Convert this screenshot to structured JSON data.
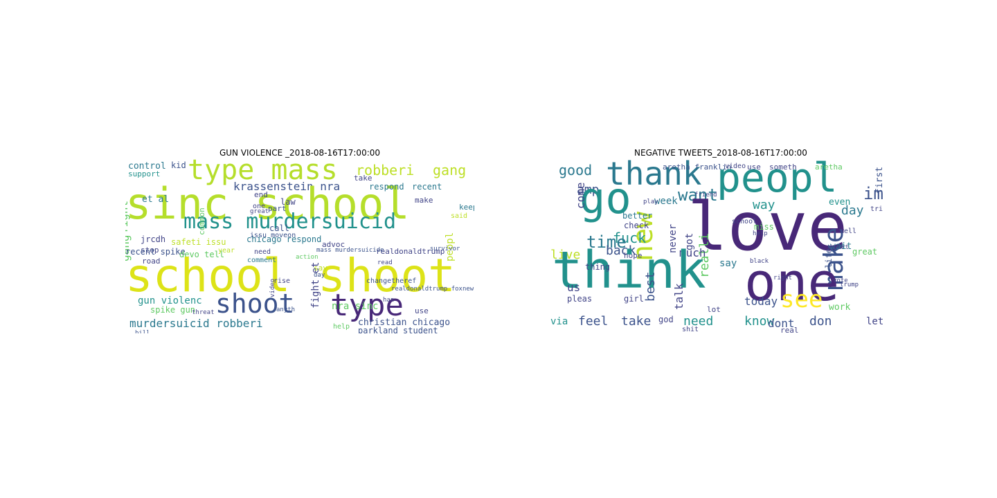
{
  "panels": [
    {
      "title": "GUN VIOLENCE _2018-08-16T17:00:00",
      "words": [
        {
          "t": "control",
          "c": "#2a788e"
        },
        {
          "t": "kid",
          "c": "#3b528b"
        },
        {
          "t": "support",
          "c": "#21918c"
        },
        {
          "t": "type mass",
          "c": "#b5de2b"
        },
        {
          "t": "robberi",
          "c": "#bddf26"
        },
        {
          "t": "gang",
          "c": "#bddf26"
        },
        {
          "t": "fight",
          "c": "#5ec962"
        },
        {
          "t": "krassenstein nra",
          "c": "#3b528b"
        },
        {
          "t": "sinc school",
          "c": "#b5de2b"
        },
        {
          "t": "et al",
          "c": "#2a788e"
        },
        {
          "t": "respond",
          "c": "#2a788e"
        },
        {
          "t": "recent",
          "c": "#2a788e"
        },
        {
          "t": "take",
          "c": "#414487"
        },
        {
          "t": "law",
          "c": "#414487"
        },
        {
          "t": "part",
          "c": "#3b528b"
        },
        {
          "t": "end",
          "c": "#414487"
        },
        {
          "t": "keep",
          "c": "#2a788e"
        },
        {
          "t": "make",
          "c": "#414487"
        },
        {
          "t": "said",
          "c": "#bddf26"
        },
        {
          "t": "mass murdersuicid",
          "c": "#21918c"
        },
        {
          "t": "gang",
          "c": "#5ec962"
        },
        {
          "t": "peopl",
          "c": "#bddf26"
        },
        {
          "t": "jrcdh",
          "c": "#414487"
        },
        {
          "t": "stop",
          "c": "#414487"
        },
        {
          "t": "road",
          "c": "#414487"
        },
        {
          "t": "call",
          "c": "#3b528b"
        },
        {
          "t": "chicago respond",
          "c": "#2a788e"
        },
        {
          "t": "safeti issu",
          "c": "#bddf26"
        },
        {
          "t": "recent spike",
          "c": "#3b528b"
        },
        {
          "t": "devo tell",
          "c": "#5ec962"
        },
        {
          "t": "advoc",
          "c": "#414487"
        },
        {
          "t": "realdonaldtrump",
          "c": "#414487"
        },
        {
          "t": "school shoot",
          "c": "#dde318"
        },
        {
          "t": "fight et",
          "c": "#414487"
        },
        {
          "t": "gun violenc",
          "c": "#21918c"
        },
        {
          "t": "shoot",
          "c": "#3b528b"
        },
        {
          "t": "type",
          "c": "#482878"
        },
        {
          "t": "nra sinc",
          "c": "#5ec962"
        },
        {
          "t": "spike gun",
          "c": "#5ec962"
        },
        {
          "t": "murdersuicid robberi",
          "c": "#2a788e"
        },
        {
          "t": "christian chicago",
          "c": "#3b528b"
        },
        {
          "t": "parkland student",
          "c": "#3b528b"
        },
        {
          "t": "use",
          "c": "#414487"
        },
        {
          "t": "help",
          "c": "#5ec962"
        },
        {
          "t": "say",
          "c": "#bddf26"
        },
        {
          "t": "year",
          "c": "#bddf26"
        },
        {
          "t": "need",
          "c": "#414487"
        },
        {
          "t": "comment",
          "c": "#2a788e"
        },
        {
          "t": "issu moveon",
          "c": "#3b528b"
        },
        {
          "t": "mass murdersuicide",
          "c": "#3b528b"
        },
        {
          "t": "survivor",
          "c": "#3b528b"
        },
        {
          "t": "read",
          "c": "#414487"
        },
        {
          "t": "changetheref",
          "c": "#3b528b"
        },
        {
          "t": "realdonaldtrump foxnew",
          "c": "#3b528b"
        },
        {
          "t": "threat",
          "c": "#414487"
        },
        {
          "t": "action",
          "c": "#5ec962"
        },
        {
          "t": "great",
          "c": "#414487"
        },
        {
          "t": "one",
          "c": "#414487"
        },
        {
          "t": "rise",
          "c": "#414487"
        },
        {
          "t": "day",
          "c": "#3b528b"
        },
        {
          "t": "han",
          "c": "#414487"
        },
        {
          "t": "bill",
          "c": "#3b528b"
        },
        {
          "t": "common",
          "c": "#5ec962"
        },
        {
          "t": "video",
          "c": "#414487"
        },
        {
          "t": "anyth",
          "c": "#3b528b"
        }
      ]
    },
    {
      "title": "NEGATIVE TWEETS_2018-08-16T17:00:00",
      "words": [
        {
          "t": "good",
          "c": "#2a788e"
        },
        {
          "t": "thank",
          "c": "#2a788e"
        },
        {
          "t": "peopl",
          "c": "#21918c"
        },
        {
          "t": "aretha franklin",
          "c": "#3b528b"
        },
        {
          "t": "video",
          "c": "#414487"
        },
        {
          "t": "use",
          "c": "#414487"
        },
        {
          "t": "someth",
          "c": "#414487"
        },
        {
          "t": "aretha",
          "c": "#5ec962"
        },
        {
          "t": "first",
          "c": "#3b528b"
        },
        {
          "t": "look",
          "c": "#3b528b"
        },
        {
          "t": "amp",
          "c": "#3b528b"
        },
        {
          "t": "go",
          "c": "#21918c"
        },
        {
          "t": "come",
          "c": "#414487"
        },
        {
          "t": "want",
          "c": "#2a788e"
        },
        {
          "t": "im",
          "c": "#3b528b"
        },
        {
          "t": "new",
          "c": "#bddf26"
        },
        {
          "t": "love",
          "c": "#482878"
        },
        {
          "t": "week",
          "c": "#2a788e"
        },
        {
          "t": "better",
          "c": "#2a788e"
        },
        {
          "t": "check",
          "c": "#414487"
        },
        {
          "t": "way",
          "c": "#21918c"
        },
        {
          "t": "even",
          "c": "#21918c"
        },
        {
          "t": "day",
          "c": "#2a788e"
        },
        {
          "t": "fuck",
          "c": "#21918c"
        },
        {
          "t": "time",
          "c": "#2a788e"
        },
        {
          "t": "never",
          "c": "#414487"
        },
        {
          "t": "got",
          "c": "#414487"
        },
        {
          "t": "realli",
          "c": "#5ec962"
        },
        {
          "t": "miss",
          "c": "#5ec962"
        },
        {
          "t": "make",
          "c": "#3b528b"
        },
        {
          "t": "live",
          "c": "#bddf26"
        },
        {
          "t": "back",
          "c": "#3b528b"
        },
        {
          "t": "hope",
          "c": "#414487"
        },
        {
          "t": "much",
          "c": "#414487"
        },
        {
          "t": "say",
          "c": "#2a788e"
        },
        {
          "t": "wait",
          "c": "#2a788e"
        },
        {
          "t": "think",
          "c": "#21918c"
        },
        {
          "t": "one",
          "c": "#482878"
        },
        {
          "t": "thing",
          "c": "#414487"
        },
        {
          "t": "best",
          "c": "#3b528b"
        },
        {
          "t": "us",
          "c": "#414487"
        },
        {
          "t": "talk",
          "c": "#414487"
        },
        {
          "t": "pleas",
          "c": "#414487"
        },
        {
          "t": "girl",
          "c": "#414487"
        },
        {
          "t": "see",
          "c": "#fde725"
        },
        {
          "t": "today",
          "c": "#3b528b"
        },
        {
          "t": "great",
          "c": "#5ec962"
        },
        {
          "t": "life",
          "c": "#3b528b"
        },
        {
          "t": "via",
          "c": "#21918c"
        },
        {
          "t": "feel",
          "c": "#3b528b"
        },
        {
          "t": "take",
          "c": "#3b528b"
        },
        {
          "t": "god",
          "c": "#414487"
        },
        {
          "t": "need",
          "c": "#21918c"
        },
        {
          "t": "lot",
          "c": "#414487"
        },
        {
          "t": "know",
          "c": "#21918c"
        },
        {
          "t": "dont",
          "c": "#3b528b"
        },
        {
          "t": "don",
          "c": "#3b528b"
        },
        {
          "t": "work",
          "c": "#5ec962"
        },
        {
          "t": "let",
          "c": "#414487"
        },
        {
          "t": "shit",
          "c": "#414487"
        },
        {
          "t": "real",
          "c": "#414487"
        },
        {
          "t": "well",
          "c": "#414487"
        },
        {
          "t": "tri",
          "c": "#414487"
        },
        {
          "t": "school",
          "c": "#414487"
        },
        {
          "t": "black",
          "c": "#414487"
        },
        {
          "t": "heart",
          "c": "#414487"
        },
        {
          "t": "right",
          "c": "#414487"
        },
        {
          "t": "vote",
          "c": "#414487"
        },
        {
          "t": "trump",
          "c": "#414487"
        },
        {
          "t": "help",
          "c": "#414487"
        },
        {
          "t": "play",
          "c": "#414487"
        },
        {
          "t": "friend",
          "c": "#414487"
        }
      ]
    }
  ]
}
